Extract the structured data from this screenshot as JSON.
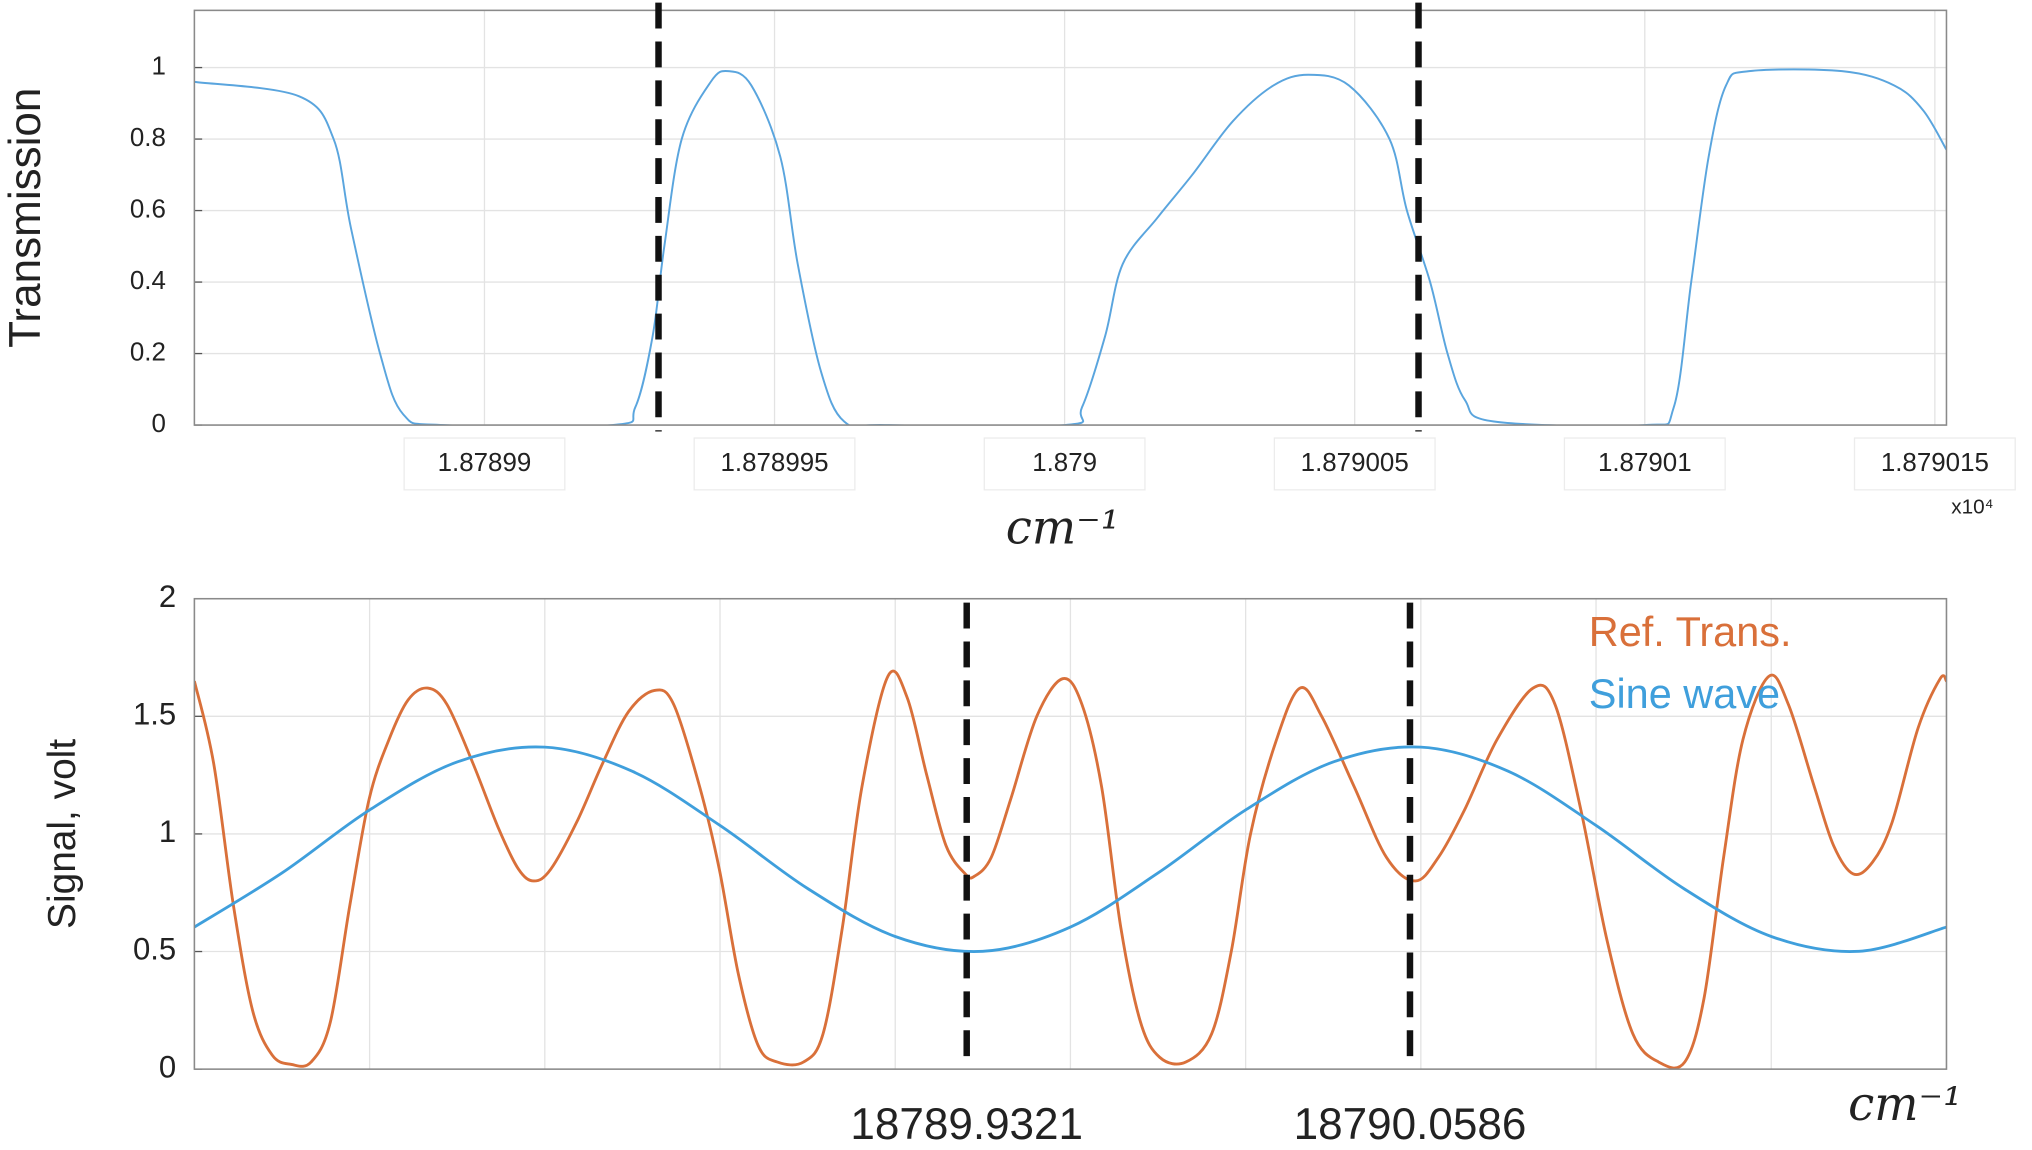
{
  "chart_data": [
    {
      "type": "line",
      "ylabel": "Transmission",
      "xlabel": "cm⁻¹",
      "x_multiplier": "x10⁴",
      "color": "#5aa5de",
      "grid": true,
      "xlim": [
        1.878985,
        1.8790152
      ],
      "ylim": [
        0,
        1.16
      ],
      "xticks": [
        1.87899,
        1.878995,
        1.879,
        1.879005,
        1.87901,
        1.879015
      ],
      "yticks": [
        0,
        0.2,
        0.4,
        0.6,
        0.8,
        1
      ],
      "markers": [
        1.878993,
        1.8790061
      ],
      "x": [
        1.878985,
        1.8789868,
        1.8789874,
        1.8789877,
        1.8789882,
        1.8789886,
        1.8789893,
        1.8789922,
        1.8789926,
        1.8789929,
        1.8789931,
        1.8789934,
        1.8789939,
        1.8789942,
        1.8789946,
        1.8789951,
        1.8789954,
        1.8789958,
        1.8789962,
        1.8789969,
        1.879,
        1.8790003,
        1.8790007,
        1.879001,
        1.8790016,
        1.8790022,
        1.8790029,
        1.8790036,
        1.8790042,
        1.8790049,
        1.8790056,
        1.8790059,
        1.8790063,
        1.8790066,
        1.8790069,
        1.8790074,
        1.87901,
        1.8790105,
        1.8790108,
        1.8790111,
        1.8790114,
        1.8790118,
        1.8790134,
        1.8790143,
        1.8790148,
        1.8790152
      ],
      "values": [
        0.96,
        0.92,
        0.8,
        0.55,
        0.2,
        0.03,
        0,
        0,
        0.05,
        0.25,
        0.5,
        0.8,
        0.96,
        0.99,
        0.95,
        0.75,
        0.45,
        0.15,
        0.01,
        0,
        0,
        0.05,
        0.25,
        0.45,
        0.58,
        0.7,
        0.85,
        0.95,
        0.98,
        0.95,
        0.8,
        0.6,
        0.4,
        0.2,
        0.07,
        0.01,
        0,
        0.05,
        0.4,
        0.75,
        0.95,
        0.99,
        0.99,
        0.95,
        0.88,
        0.77
      ]
    },
    {
      "type": "line",
      "ylabel": "Signal, volt",
      "xlabel": "cm⁻¹",
      "grid": true,
      "xtick_labels": false,
      "legend": "upper right",
      "xlim": [
        18789.7117,
        18790.2117
      ],
      "ylim": [
        0,
        2
      ],
      "xticks": [
        18789.7117,
        18789.7617,
        18789.8117,
        18789.8617,
        18789.9117,
        18789.9617,
        18790.0117,
        18790.0617,
        18790.1117,
        18790.1617,
        18790.2117
      ],
      "yticks": [
        0,
        0.5,
        1,
        1.5,
        2
      ],
      "markers": [
        18789.9321,
        18790.0586
      ],
      "marker_labels": true,
      "series": [
        {
          "name": "Ref. Trans.",
          "color": "#d9703a",
          "x": [
            18789.7117,
            18789.7172,
            18789.7228,
            18789.7283,
            18789.7339,
            18789.7394,
            18789.745,
            18789.7505,
            18789.7561,
            18789.7616,
            18789.7672,
            18789.7727,
            18789.7783,
            18789.7838,
            18789.7912,
            18789.7986,
            18789.8042,
            18789.8086,
            18789.8134,
            18789.8208,
            18789.8282,
            18789.8356,
            18789.843,
            18789.8485,
            18789.8559,
            18789.8615,
            18789.867,
            18789.8726,
            18789.8781,
            18789.8855,
            18789.8911,
            18789.8966,
            18789.9022,
            18789.9096,
            18789.9151,
            18789.9207,
            18789.9262,
            18789.9317,
            18789.9343,
            18789.9391,
            18789.9447,
            18789.9521,
            18789.9595,
            18789.965,
            18789.9706,
            18789.9761,
            18789.9817,
            18789.9872,
            18789.9946,
            18790.002,
            18790.0076,
            18790.0131,
            18790.0205,
            18790.0272,
            18790.0334,
            18790.0427,
            18790.0519,
            18790.0601,
            18790.0667,
            18790.0741,
            18790.0834,
            18790.0937,
            18790.1,
            18790.1074,
            18790.1148,
            18790.1222,
            18790.1296,
            18790.137,
            18790.1425,
            18790.1481,
            18790.1536,
            18790.161,
            18790.1666,
            18790.174,
            18790.1795,
            18790.1851,
            18790.1906,
            18790.1962,
            18790.2036,
            18790.2099,
            18790.2117
          ],
          "values": [
            1.65,
            1.3,
            0.7,
            0.25,
            0.06,
            0.02,
            0.03,
            0.2,
            0.7,
            1.15,
            1.4,
            1.57,
            1.62,
            1.55,
            1.3,
            1.02,
            0.85,
            0.8,
            0.85,
            1.05,
            1.3,
            1.52,
            1.61,
            1.55,
            1.2,
            0.85,
            0.4,
            0.1,
            0.03,
            0.03,
            0.15,
            0.6,
            1.2,
            1.67,
            1.58,
            1.25,
            0.95,
            0.83,
            0.82,
            0.9,
            1.15,
            1.5,
            1.66,
            1.55,
            1.2,
            0.6,
            0.2,
            0.05,
            0.03,
            0.15,
            0.5,
            1.0,
            1.4,
            1.62,
            1.5,
            1.2,
            0.9,
            0.8,
            0.9,
            1.1,
            1.4,
            1.62,
            1.55,
            1.1,
            0.55,
            0.15,
            0.03,
            0.03,
            0.3,
            0.9,
            1.4,
            1.67,
            1.55,
            1.2,
            0.95,
            0.83,
            0.88,
            1.05,
            1.45,
            1.66,
            1.65
          ]
        },
        {
          "name": "Sine wave",
          "color": "#3f9fdc",
          "x": [
            18789.7117,
            18789.7367,
            18789.7617,
            18789.7867,
            18789.8117,
            18789.8367,
            18789.8617,
            18789.8867,
            18789.9117,
            18789.9367,
            18789.9617,
            18789.9867,
            18790.0117,
            18790.0367,
            18790.0617,
            18790.0867,
            18790.1117,
            18790.1367,
            18790.1617,
            18790.1867,
            18790.2117
          ],
          "values": [
            0.604,
            0.834,
            1.102,
            1.306,
            1.369,
            1.266,
            1.036,
            0.768,
            0.564,
            0.501,
            0.604,
            0.834,
            1.102,
            1.306,
            1.369,
            1.266,
            1.036,
            0.768,
            0.564,
            0.501,
            0.604
          ]
        }
      ]
    }
  ]
}
